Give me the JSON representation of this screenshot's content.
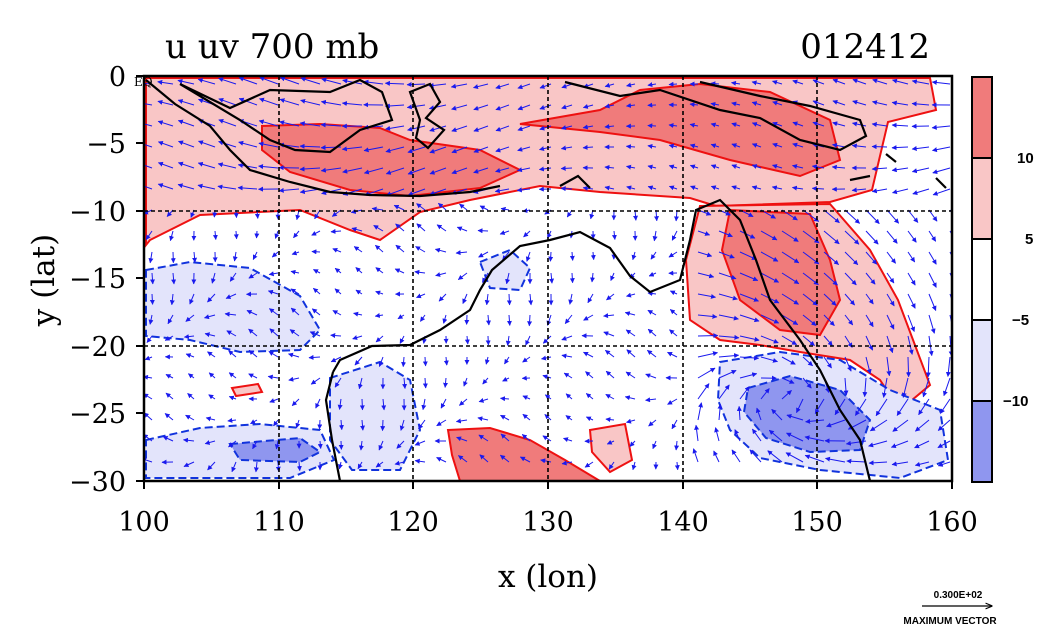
{
  "chart_data": {
    "type": "heatmap",
    "title": "u uv 700 mb",
    "date_label": "012412",
    "xlabel": "x (lon)",
    "ylabel": "y (lat)",
    "xlim": [
      100,
      160
    ],
    "ylim": [
      -30,
      0
    ],
    "x_ticks": [
      100,
      110,
      120,
      130,
      140,
      150,
      160
    ],
    "y_ticks": [
      0,
      -5,
      -10,
      -15,
      -20,
      -25,
      -30
    ],
    "x_tick_labels": [
      "100",
      "110",
      "120",
      "130",
      "140",
      "150",
      "160"
    ],
    "y_tick_labels": [
      "0",
      "−5",
      "−10",
      "−15",
      "−20",
      "−25",
      "−30"
    ],
    "equator_label": "EQ",
    "grid_lon": [
      110,
      120,
      130,
      140,
      150
    ],
    "grid_lat": [
      -10,
      -20
    ],
    "colorbar": {
      "tick_labels": [
        "10",
        "5",
        "−5",
        "−10"
      ],
      "bins": [
        {
          "from": 10,
          "to": 15,
          "color": "#f07b7b"
        },
        {
          "from": 5,
          "to": 10,
          "color": "#f9c6c6"
        },
        {
          "from": -5,
          "to": 5,
          "color": "#ffffff"
        },
        {
          "from": -10,
          "to": -5,
          "color": "#e3e4fb"
        },
        {
          "from": -15,
          "to": -10,
          "color": "#8f96ef"
        }
      ]
    },
    "contour_colors": {
      "positive": "#ee1111",
      "negative": "#1133dd",
      "coast": "#000000",
      "vector": "#1a1aee"
    },
    "vector_legend": {
      "value": "0.300E+02",
      "label": "MAXIMUM VECTOR"
    }
  }
}
